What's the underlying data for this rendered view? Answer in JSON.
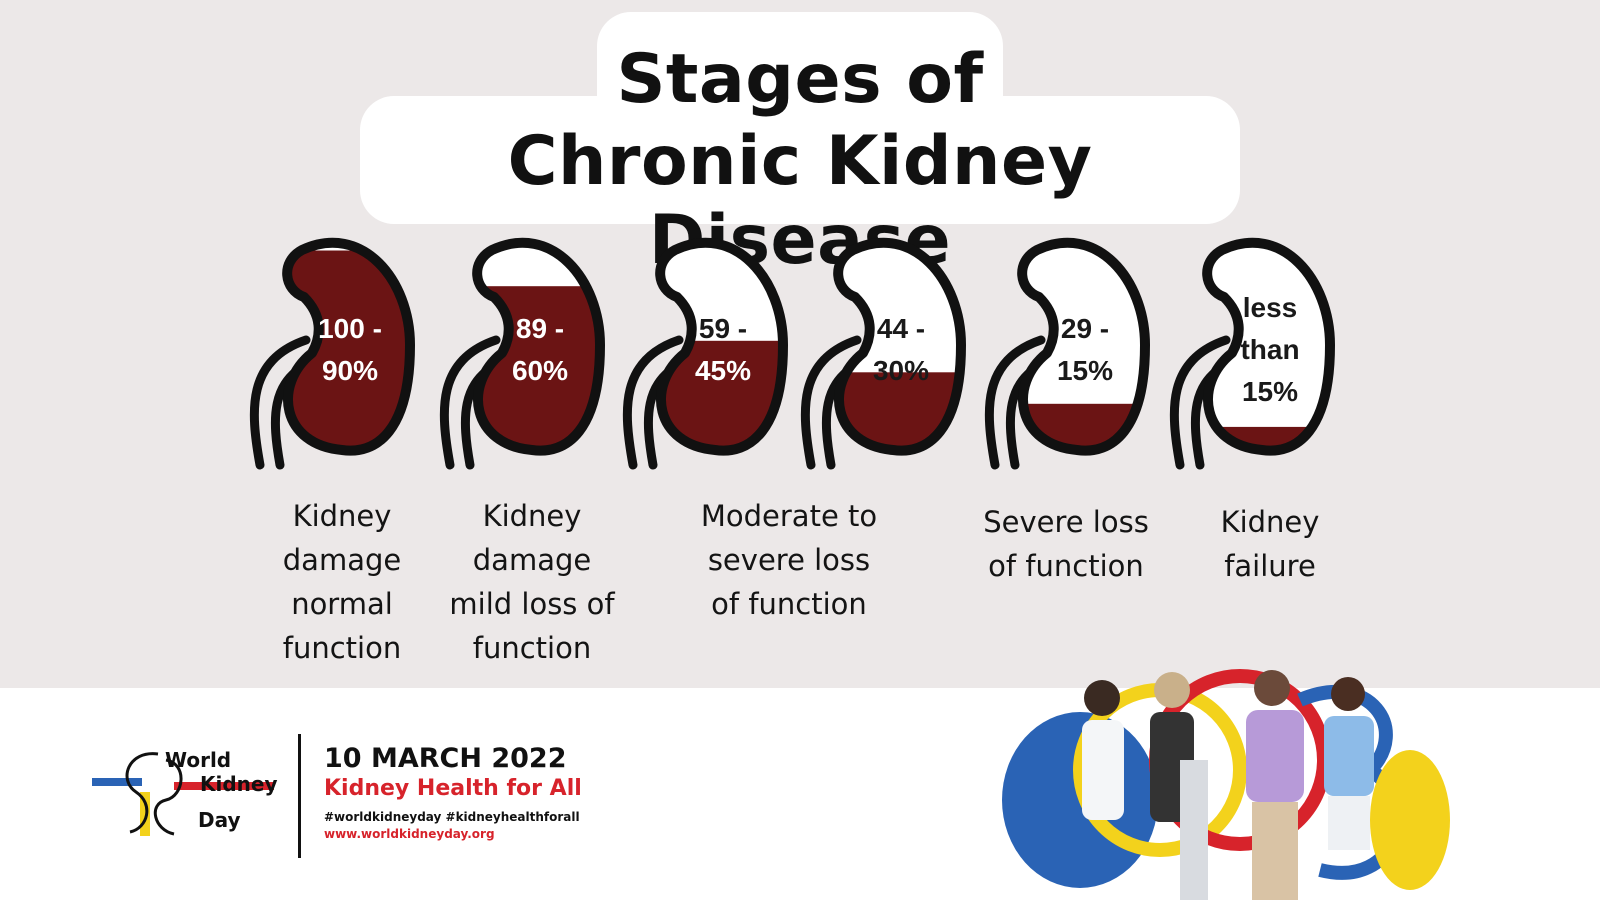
{
  "title": {
    "line1": "Stages of",
    "line2": "Chronic Kidney Disease"
  },
  "colors": {
    "fill": "#6b1414",
    "outline": "#111111",
    "background": "#ece8e8"
  },
  "stages": [
    {
      "range_lines": [
        "100 -",
        "90%"
      ],
      "fill_fraction": 0.95,
      "label_lines": [
        "Kidney",
        "damage",
        "normal",
        "function"
      ]
    },
    {
      "range_lines": [
        "89 -",
        "60%"
      ],
      "fill_fraction": 0.78,
      "label_lines": [
        "Kidney",
        "damage",
        "mild loss of",
        "function"
      ]
    },
    {
      "range_lines": [
        "59 -",
        "45%"
      ],
      "fill_fraction": 0.52,
      "label_lines": []
    },
    {
      "range_lines": [
        "44 -",
        "30%"
      ],
      "fill_fraction": 0.37,
      "label_lines": []
    },
    {
      "range_lines": [
        "29 -",
        "15%"
      ],
      "fill_fraction": 0.22,
      "label_lines": [
        "Severe loss",
        "of function"
      ]
    },
    {
      "range_lines": [
        "less",
        "than",
        "15%"
      ],
      "fill_fraction": 0.11,
      "label_lines": [
        "Kidney",
        "failure"
      ]
    }
  ],
  "group_label": {
    "label_lines": [
      "Moderate to",
      "severe loss",
      "of function"
    ]
  },
  "footer": {
    "logo_words": [
      "World",
      "Kidney",
      "Day"
    ],
    "date": "10 MARCH 2022",
    "theme": "Kidney Health for All",
    "hashtags": "#worldkidneyday #kidneyhealthforall",
    "website": "www.worldkidneyday.org"
  }
}
